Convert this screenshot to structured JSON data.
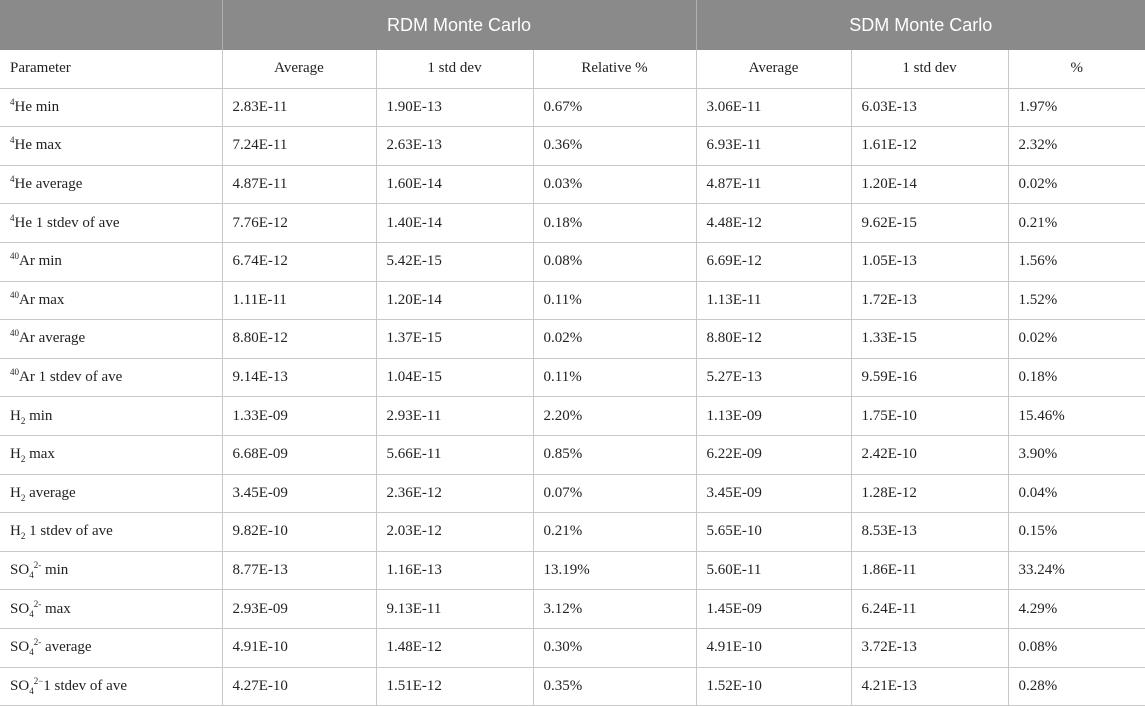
{
  "groups": {
    "rdm": "RDM Monte Carlo",
    "sdm": "SDM Monte Carlo"
  },
  "columns": {
    "parameter": "Parameter",
    "rdm_average": "Average",
    "rdm_std": "1 std dev",
    "rdm_rel": "Relative %",
    "sdm_average": "Average",
    "sdm_std": "1 std dev",
    "sdm_rel": "%"
  },
  "rows": [
    {
      "sup": "4",
      "base": "He",
      "sub": "",
      "suffix": " min",
      "v": [
        "2.83E-11",
        "1.90E-13",
        "0.67%",
        "3.06E-11",
        "6.03E-13",
        "1.97%"
      ]
    },
    {
      "sup": "4",
      "base": "He",
      "sub": "",
      "suffix": " max",
      "v": [
        "7.24E-11",
        "2.63E-13",
        "0.36%",
        "6.93E-11",
        "1.61E-12",
        "2.32%"
      ]
    },
    {
      "sup": "4",
      "base": "He",
      "sub": "",
      "suffix": " average",
      "v": [
        "4.87E-11",
        "1.60E-14",
        "0.03%",
        "4.87E-11",
        "1.20E-14",
        "0.02%"
      ]
    },
    {
      "sup": "4",
      "base": "He",
      "sub": "",
      "suffix": " 1 stdev of ave",
      "v": [
        "7.76E-12",
        "1.40E-14",
        "0.18%",
        "4.48E-12",
        "9.62E-15",
        "0.21%"
      ]
    },
    {
      "sup": "40",
      "base": "Ar",
      "sub": "",
      "suffix": " min",
      "v": [
        "6.74E-12",
        "5.42E-15",
        "0.08%",
        "6.69E-12",
        "1.05E-13",
        "1.56%"
      ]
    },
    {
      "sup": "40",
      "base": "Ar",
      "sub": "",
      "suffix": " max",
      "v": [
        "1.11E-11",
        "1.20E-14",
        "0.11%",
        "1.13E-11",
        "1.72E-13",
        "1.52%"
      ]
    },
    {
      "sup": "40",
      "base": "Ar",
      "sub": "",
      "suffix": " average",
      "v": [
        "8.80E-12",
        "1.37E-15",
        "0.02%",
        "8.80E-12",
        "1.33E-15",
        "0.02%"
      ]
    },
    {
      "sup": "40",
      "base": "Ar",
      "sub": "",
      "suffix": " 1 stdev of ave",
      "v": [
        "9.14E-13",
        "1.04E-15",
        "0.11%",
        "5.27E-13",
        "9.59E-16",
        "0.18%"
      ]
    },
    {
      "sup": "",
      "base": "H",
      "sub": "2",
      "suffix": " min",
      "v": [
        "1.33E-09",
        "2.93E-11",
        "2.20%",
        "1.13E-09",
        "1.75E-10",
        "15.46%"
      ]
    },
    {
      "sup": "",
      "base": "H",
      "sub": "2",
      "suffix": " max",
      "v": [
        "6.68E-09",
        "5.66E-11",
        "0.85%",
        "6.22E-09",
        "2.42E-10",
        "3.90%"
      ]
    },
    {
      "sup": "",
      "base": "H",
      "sub": "2",
      "suffix": " average",
      "v": [
        "3.45E-09",
        "2.36E-12",
        "0.07%",
        "3.45E-09",
        "1.28E-12",
        "0.04%"
      ]
    },
    {
      "sup": "",
      "base": "H",
      "sub": "2",
      "suffix": " 1 stdev of ave",
      "v": [
        "9.82E-10",
        "2.03E-12",
        "0.21%",
        "5.65E-10",
        "8.53E-13",
        "0.15%"
      ]
    },
    {
      "sup": "",
      "base": "SO",
      "sub": "4",
      "ion": "2-",
      "suffix": " min",
      "v": [
        "8.77E-13",
        "1.16E-13",
        "13.19%",
        "5.60E-11",
        "1.86E-11",
        "33.24%"
      ]
    },
    {
      "sup": "",
      "base": "SO",
      "sub": "4",
      "ion": "2-",
      "suffix": " max",
      "v": [
        "2.93E-09",
        "9.13E-11",
        "3.12%",
        "1.45E-09",
        "6.24E-11",
        "4.29%"
      ]
    },
    {
      "sup": "",
      "base": "SO",
      "sub": "4",
      "ion": "2-",
      "suffix": " average",
      "v": [
        "4.91E-10",
        "1.48E-12",
        "0.30%",
        "4.91E-10",
        "3.72E-13",
        "0.08%"
      ]
    },
    {
      "sup": "",
      "base": "SO",
      "sub": "4",
      "ion": "2−",
      "suffix": "1 stdev of ave",
      "v": [
        "4.27E-10",
        "1.51E-12",
        "0.35%",
        "1.52E-10",
        "4.21E-13",
        "0.28%"
      ]
    }
  ]
}
